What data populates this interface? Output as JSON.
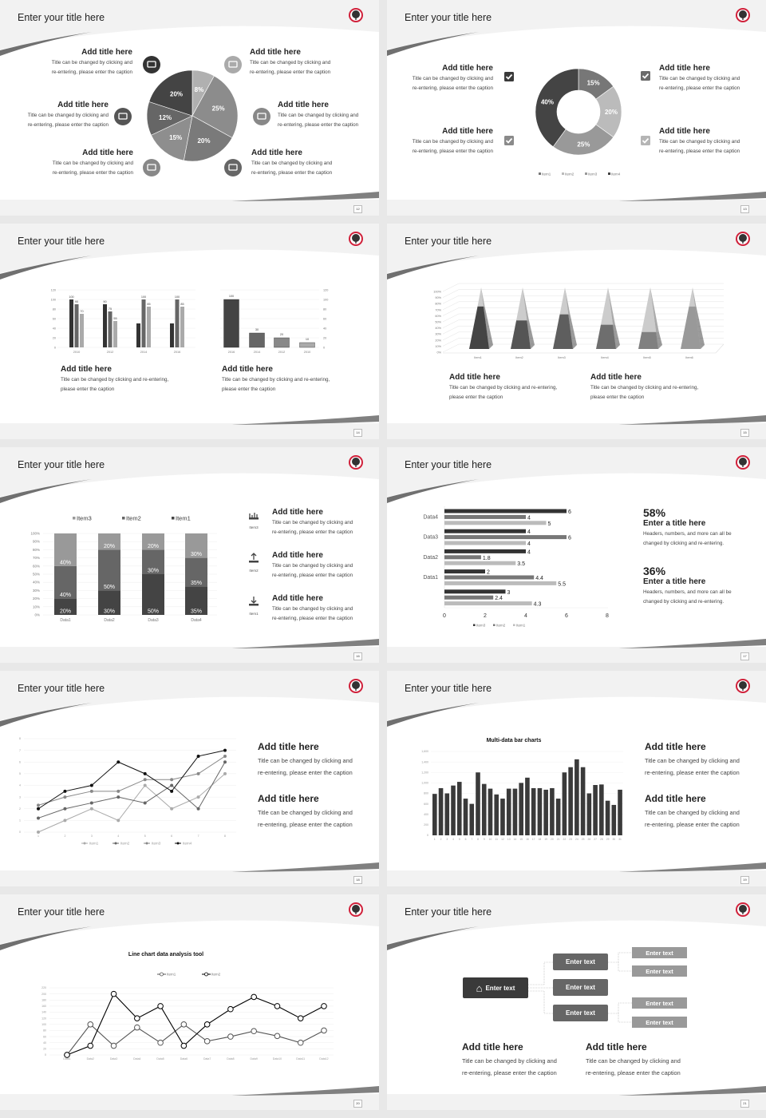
{
  "slides": [
    {
      "title": "Enter your title here",
      "page": "12"
    },
    {
      "title": "Enter your title here",
      "page": "13"
    },
    {
      "title": "Enter your title here",
      "page": "14"
    },
    {
      "title": "Enter your title here",
      "page": "15"
    },
    {
      "title": "Enter your title here",
      "page": "16"
    },
    {
      "title": "Enter your title here",
      "page": "17"
    },
    {
      "title": "Enter your title here",
      "page": "18"
    },
    {
      "title": "Enter your title here",
      "page": "19"
    },
    {
      "title": "Enter your title here",
      "page": "20"
    },
    {
      "title": "Enter your title here",
      "page": "21"
    }
  ],
  "s1": {
    "items": [
      {
        "title": "Add title here",
        "caption": "Title can be changed by clicking and\nre-entering, please enter the caption",
        "icon": "monitor-icon"
      },
      {
        "title": "Add title here",
        "caption": "Title can be changed by clicking and\nre-entering, please enter the caption",
        "icon": "car-icon"
      },
      {
        "title": "Add title here",
        "caption": "Title can be changed by clicking and\nre-entering, please enter the caption",
        "icon": "book-icon"
      },
      {
        "title": "Add title here",
        "caption": "Title can be changed by clicking and\nre-entering, please enter the caption",
        "icon": "smartphone-icon"
      },
      {
        "title": "Add title here",
        "caption": "Title can be changed by clicking and\nre-entering, please enter the caption",
        "icon": "binoculars-icon"
      },
      {
        "title": "Add title here",
        "caption": "Title can be changed by clicking and\nre-entering, please enter the caption",
        "icon": "bicycle-icon"
      }
    ]
  },
  "s2": {
    "items": [
      {
        "title": "Add title here",
        "caption": "Title can be changed by clicking and\nre-entering, please enter the caption",
        "icon": "checkbox-icon"
      },
      {
        "title": "Add title here",
        "caption": "Title can be changed by clicking and\nre-entering, please enter the caption",
        "icon": "checkbox-icon"
      },
      {
        "title": "Add title here",
        "caption": "Title can be changed by clicking and\nre-entering, please enter the caption",
        "icon": "checkbox-icon"
      },
      {
        "title": "Add title here",
        "caption": "Title can be changed by clicking and\nre-entering, please enter the caption",
        "icon": "checkbox-icon"
      }
    ],
    "check_colors": [
      "#3a3a3a",
      "#8a8a8a",
      "#6a6a6a",
      "#b5b5b5"
    ]
  },
  "s3": {
    "items": [
      {
        "title": "Add title here",
        "caption": "Title can be changed by clicking and re-entering,\nplease enter the caption"
      },
      {
        "title": "Add title here",
        "caption": "Title can be changed by clicking and re-entering,\nplease enter the caption"
      }
    ]
  },
  "s4": {
    "items": [
      {
        "title": "Add title here",
        "caption": "Title can be changed by clicking and re-entering,\nplease enter the caption"
      },
      {
        "title": "Add title here",
        "caption": "Title can be changed by clicking and re-entering,\nplease enter the caption"
      }
    ]
  },
  "s5": {
    "items": [
      {
        "title": "Add title here",
        "caption": "Title can be changed by clicking and\nre-entering, please enter the caption",
        "icon": "bar-chart-icon",
        "icon_label": "Item3"
      },
      {
        "title": "Add title here",
        "caption": "Title can be changed by clicking and\nre-entering, please enter the caption",
        "icon": "upload-icon",
        "icon_label": "Item2"
      },
      {
        "title": "Add title here",
        "caption": "Title can be changed by clicking and\nre-entering, please enter the caption",
        "icon": "download-icon",
        "icon_label": "Item1"
      }
    ]
  },
  "s6": {
    "items": [
      {
        "number": "58%",
        "title": "Enter a title here",
        "caption": "Headers, numbers, and more can all be\nchanged by clicking and re-entering."
      },
      {
        "number": "36%",
        "title": "Enter a title here",
        "caption": "Headers, numbers, and more can all be\nchanged by clicking and re-entering."
      }
    ]
  },
  "s7": {
    "items": [
      {
        "title": "Add title here",
        "caption": "Title can be changed by clicking and\nre-entering, please enter the caption"
      },
      {
        "title": "Add title here",
        "caption": "Title can be changed by clicking and\nre-entering, please enter the caption"
      }
    ]
  },
  "s8": {
    "items": [
      {
        "title": "Add title here",
        "caption": "Title can be changed by clicking and\nre-entering, please enter the caption"
      },
      {
        "title": "Add title here",
        "caption": "Title can be changed by clicking and\nre-entering, please enter the caption"
      }
    ]
  },
  "s10": {
    "root": {
      "label": "Enter text",
      "icon": "home-icon"
    },
    "mid": [
      "Enter text",
      "Enter text",
      "Enter text"
    ],
    "leaves": [
      "Enter text",
      "Enter text",
      "Enter text",
      "Enter text"
    ],
    "items": [
      {
        "title": "Add title here",
        "caption": "Title can be changed by clicking and\nre-entering, please enter the caption"
      },
      {
        "title": "Add title here",
        "caption": "Title can be changed by clicking and\nre-entering, please enter the caption"
      }
    ]
  },
  "colors": {
    "logo_ring": "#d0203a",
    "content": "#ffffff",
    "header": "#f2f2f2"
  },
  "chart_data": [
    {
      "type": "pie",
      "values": [
        8,
        25,
        20,
        15,
        12,
        20
      ],
      "labels": [
        "8%",
        "25%",
        "20%",
        "15%",
        "12%",
        "20%"
      ],
      "colors": [
        "#b0b0b0",
        "#8c8c8c",
        "#7a7a7a",
        "#8e8e8e",
        "#666666",
        "#444444"
      ]
    },
    {
      "type": "pie",
      "donut": true,
      "values": [
        15,
        20,
        25,
        40
      ],
      "labels": [
        "15%",
        "20%",
        "25%",
        "40%"
      ],
      "colors": [
        "#777777",
        "#bbbbbb",
        "#999999",
        "#444444"
      ],
      "legend": [
        "Item1",
        "Item2",
        "Item3",
        "Item4"
      ],
      "legend_placement": "bottom"
    },
    {
      "type": "bar",
      "categories": [
        "2010",
        "2012",
        "2014",
        "2016"
      ],
      "ylim": [
        0,
        120
      ],
      "yticks": [
        "0",
        "20",
        "40",
        "60",
        "80",
        "100",
        "120"
      ],
      "series": [
        {
          "values": [
            100,
            90,
            50,
            50
          ],
          "labels": [
            "100",
            "90",
            "",
            ""
          ],
          "color": "#333333"
        },
        {
          "values": [
            90,
            75,
            100,
            100
          ],
          "labels": [
            "90",
            "75",
            "100",
            "100"
          ],
          "color": "#666666"
        },
        {
          "values": [
            70,
            55,
            85,
            85
          ],
          "labels": [
            "70",
            "55",
            "85",
            "85"
          ],
          "color": "#aaaaaa"
        }
      ],
      "grid": true
    },
    {
      "type": "bar",
      "categories": [
        "2016",
        "2014",
        "2012",
        "2010"
      ],
      "values": [
        100,
        30,
        20,
        10
      ],
      "labels": [
        "100",
        "30",
        "20",
        "10"
      ],
      "colors": [
        "#444444",
        "#666666",
        "#888888",
        "#aaaaaa"
      ],
      "ylim": [
        0,
        120
      ],
      "yticks": [
        "0",
        "20",
        "40",
        "60",
        "80",
        "100",
        "120"
      ],
      "yaxis": "right",
      "grid": true
    },
    {
      "type": "bar",
      "style": "3d-pyramid",
      "categories": [
        "Item1",
        "Item2",
        "Item3",
        "Item4",
        "Item5",
        "Item6"
      ],
      "values": [
        70,
        47,
        57,
        40,
        28,
        70
      ],
      "ylim": [
        0,
        100
      ],
      "yticks": [
        "0%",
        "10%",
        "20%",
        "30%",
        "40%",
        "50%",
        "60%",
        "70%",
        "80%",
        "90%",
        "100%"
      ],
      "colors": [
        "#444444",
        "#555555",
        "#5e5e5e",
        "#6e6e6e",
        "#808080",
        "#999999"
      ],
      "tip_color": "#cccccc",
      "grid": true
    },
    {
      "type": "bar",
      "stacked": true,
      "categories": [
        "Data1",
        "Data2",
        "Data3",
        "Data4"
      ],
      "ylim": [
        0,
        100
      ],
      "yticks": [
        "0%",
        "10%",
        "20%",
        "30%",
        "40%",
        "50%",
        "60%",
        "70%",
        "80%",
        "90%",
        "100%"
      ],
      "series": [
        {
          "name": "Item1",
          "values": [
            20,
            30,
            50,
            35
          ],
          "labels": [
            "20%",
            "30%",
            "50%",
            "35%"
          ],
          "color": "#444444"
        },
        {
          "name": "Item2",
          "values": [
            40,
            50,
            30,
            35
          ],
          "labels": [
            "40%",
            "50%",
            "30%",
            "35%"
          ],
          "color": "#666666"
        },
        {
          "name": "Item3",
          "values": [
            40,
            20,
            20,
            30
          ],
          "labels": [
            "40%",
            "20%",
            "20%",
            "30%"
          ],
          "color": "#999999"
        }
      ],
      "legend": [
        "Item3",
        "Item2",
        "Item1"
      ],
      "legend_placement": "top"
    },
    {
      "type": "bar",
      "orientation": "horizontal",
      "categories": [
        "Data4",
        "Data3",
        "Data2",
        "Data1",
        ""
      ],
      "xlim": [
        0,
        8
      ],
      "xticks": [
        "0",
        "2",
        "4",
        "6",
        "8"
      ],
      "series": [
        {
          "name": "Item3",
          "values": [
            6,
            4,
            4,
            2,
            3
          ],
          "color": "#333333"
        },
        {
          "name": "Item2",
          "values": [
            4,
            6,
            1.8,
            4.4,
            2.4
          ],
          "color": "#777777"
        },
        {
          "name": "Item1",
          "values": [
            5,
            4,
            3.5,
            5.5,
            4.3
          ],
          "color": "#bbbbbb"
        }
      ],
      "legend_placement": "bottom"
    },
    {
      "type": "line",
      "x": [
        1,
        2,
        3,
        4,
        5,
        6,
        7,
        8
      ],
      "xticks": [
        "1",
        "2",
        "3",
        "4",
        "5",
        "6",
        "7",
        "8"
      ],
      "ylim": [
        0,
        8
      ],
      "yticks": [
        "0",
        "1",
        "2",
        "3",
        "4",
        "5",
        "6",
        "7",
        "8"
      ],
      "series": [
        {
          "name": "Item1",
          "values": [
            0,
            1,
            2,
            1,
            4,
            2,
            3,
            5
          ],
          "color": "#aaaaaa"
        },
        {
          "name": "Item2",
          "values": [
            1.2,
            2,
            2.5,
            3,
            2.5,
            4,
            2,
            6
          ],
          "color": "#666666"
        },
        {
          "name": "Item3",
          "values": [
            2.3,
            3,
            3.5,
            3.5,
            4.5,
            4.5,
            5,
            6.5
          ],
          "color": "#888888"
        },
        {
          "name": "Item4",
          "values": [
            2,
            3.5,
            4,
            6,
            5,
            3.5,
            6.5,
            7
          ],
          "color": "#111111"
        }
      ],
      "legend_placement": "bottom",
      "grid": true
    },
    {
      "type": "bar",
      "title": "Multi-data bar charts",
      "categories": [
        "1",
        "2",
        "3",
        "4",
        "5",
        "6",
        "7",
        "8",
        "9",
        "10",
        "11",
        "12",
        "13",
        "14",
        "15",
        "16",
        "17",
        "18",
        "19",
        "20",
        "21",
        "22",
        "23",
        "24",
        "25",
        "26",
        "27",
        "28",
        "29",
        "30",
        "31"
      ],
      "values": [
        790,
        900,
        800,
        950,
        1020,
        700,
        600,
        1200,
        980,
        890,
        780,
        700,
        890,
        890,
        1000,
        1100,
        900,
        900,
        870,
        900,
        700,
        1200,
        1300,
        1450,
        1300,
        800,
        960,
        970,
        660,
        580,
        870
      ],
      "ylim": [
        0,
        1600
      ],
      "yticks": [
        "0",
        "200",
        "400",
        "600",
        "800",
        "1,000",
        "1,200",
        "1,400",
        "1,600"
      ],
      "color": "#3a3a3a",
      "grid": true
    },
    {
      "type": "line",
      "title": "Line chart data analysis tool",
      "categories": [
        "Data1",
        "Data2",
        "Data3",
        "Data4",
        "Data5",
        "Data6",
        "Data7",
        "Data8",
        "Data9",
        "Data10",
        "Data11",
        "Data12"
      ],
      "ylim": [
        0,
        220
      ],
      "yticks": [
        "0",
        "20",
        "40",
        "60",
        "80",
        "100",
        "120",
        "140",
        "160",
        "180",
        "200",
        "220"
      ],
      "series": [
        {
          "name": "Item1",
          "values": [
            0,
            100,
            30,
            90,
            40,
            100,
            45,
            60,
            78,
            62,
            40,
            80
          ],
          "color": "#555555"
        },
        {
          "name": "Item2",
          "values": [
            0,
            30,
            200,
            120,
            160,
            30,
            100,
            150,
            190,
            160,
            120,
            160
          ],
          "color": "#000000"
        }
      ],
      "legend_placement": "top",
      "grid": true
    }
  ]
}
